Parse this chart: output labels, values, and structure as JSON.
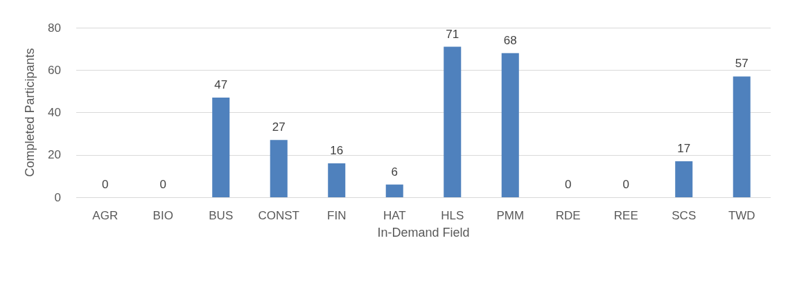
{
  "chart_data": {
    "type": "bar",
    "xlabel": "In-Demand Field",
    "ylabel": "Completed Participants",
    "categories": [
      "AGR",
      "BIO",
      "BUS",
      "CONST",
      "FIN",
      "HAT",
      "HLS",
      "PMM",
      "RDE",
      "REE",
      "SCS",
      "TWD"
    ],
    "values": [
      0,
      0,
      47,
      27,
      16,
      6,
      71,
      68,
      0,
      0,
      17,
      57
    ],
    "color": "#4f81bd",
    "ylim": [
      0,
      80
    ],
    "yticks": [
      0,
      20,
      40,
      60,
      80
    ],
    "grid": "y",
    "data_labels": true
  }
}
